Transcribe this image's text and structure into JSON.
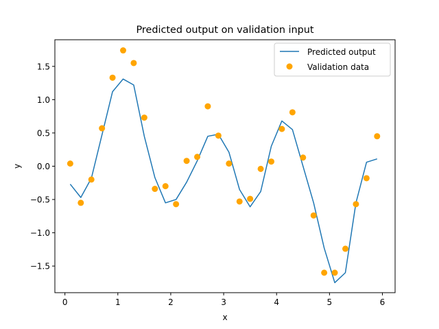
{
  "chart_data": {
    "type": "line",
    "title": "Predicted output on validation input",
    "xlabel": "x",
    "ylabel": "y",
    "xlim": [
      -0.19,
      6.24
    ],
    "ylim": [
      -1.9,
      1.9
    ],
    "xticks": [
      0,
      1,
      2,
      3,
      4,
      5,
      6
    ],
    "yticks": [
      -1.5,
      -1.0,
      -0.5,
      0.0,
      0.5,
      1.0,
      1.5
    ],
    "xtick_labels": [
      "0",
      "1",
      "2",
      "3",
      "4",
      "5",
      "6"
    ],
    "ytick_labels": [
      "−1.5",
      "−1.0",
      "−0.5",
      "0.0",
      "0.5",
      "1.0",
      "1.5"
    ],
    "grid": false,
    "legend_position": "top-right",
    "series": [
      {
        "name": "Predicted output",
        "kind": "line",
        "color": "#1f77b4",
        "x": [
          0.1,
          0.3,
          0.5,
          0.7,
          0.9,
          1.1,
          1.3,
          1.5,
          1.7,
          1.9,
          2.1,
          2.3,
          2.5,
          2.7,
          2.9,
          3.1,
          3.3,
          3.5,
          3.7,
          3.9,
          4.1,
          4.3,
          4.5,
          4.7,
          4.9,
          5.1,
          5.3,
          5.5,
          5.7,
          5.9
        ],
        "y": [
          -0.27,
          -0.47,
          -0.18,
          0.47,
          1.12,
          1.31,
          1.22,
          0.45,
          -0.17,
          -0.55,
          -0.5,
          -0.24,
          0.08,
          0.45,
          0.48,
          0.21,
          -0.35,
          -0.61,
          -0.38,
          0.3,
          0.68,
          0.55,
          0.0,
          -0.55,
          -1.23,
          -1.75,
          -1.6,
          -0.55,
          0.06,
          0.11
        ]
      },
      {
        "name": "Validation data",
        "kind": "scatter",
        "color": "#ffa500",
        "x": [
          0.1,
          0.3,
          0.5,
          0.7,
          0.9,
          1.1,
          1.3,
          1.5,
          1.7,
          1.9,
          2.1,
          2.3,
          2.5,
          2.7,
          2.9,
          3.1,
          3.3,
          3.5,
          3.7,
          3.9,
          4.1,
          4.3,
          4.5,
          4.7,
          4.9,
          5.1,
          5.3,
          5.5,
          5.7,
          5.9
        ],
        "y": [
          0.04,
          -0.55,
          -0.2,
          0.57,
          1.33,
          1.74,
          1.55,
          0.73,
          -0.34,
          -0.3,
          -0.57,
          0.08,
          0.14,
          0.9,
          0.46,
          0.04,
          -0.53,
          -0.49,
          -0.04,
          0.07,
          0.56,
          0.81,
          0.13,
          -0.74,
          -1.6,
          -1.6,
          -1.24,
          -0.57,
          -0.18,
          0.45
        ]
      }
    ]
  }
}
